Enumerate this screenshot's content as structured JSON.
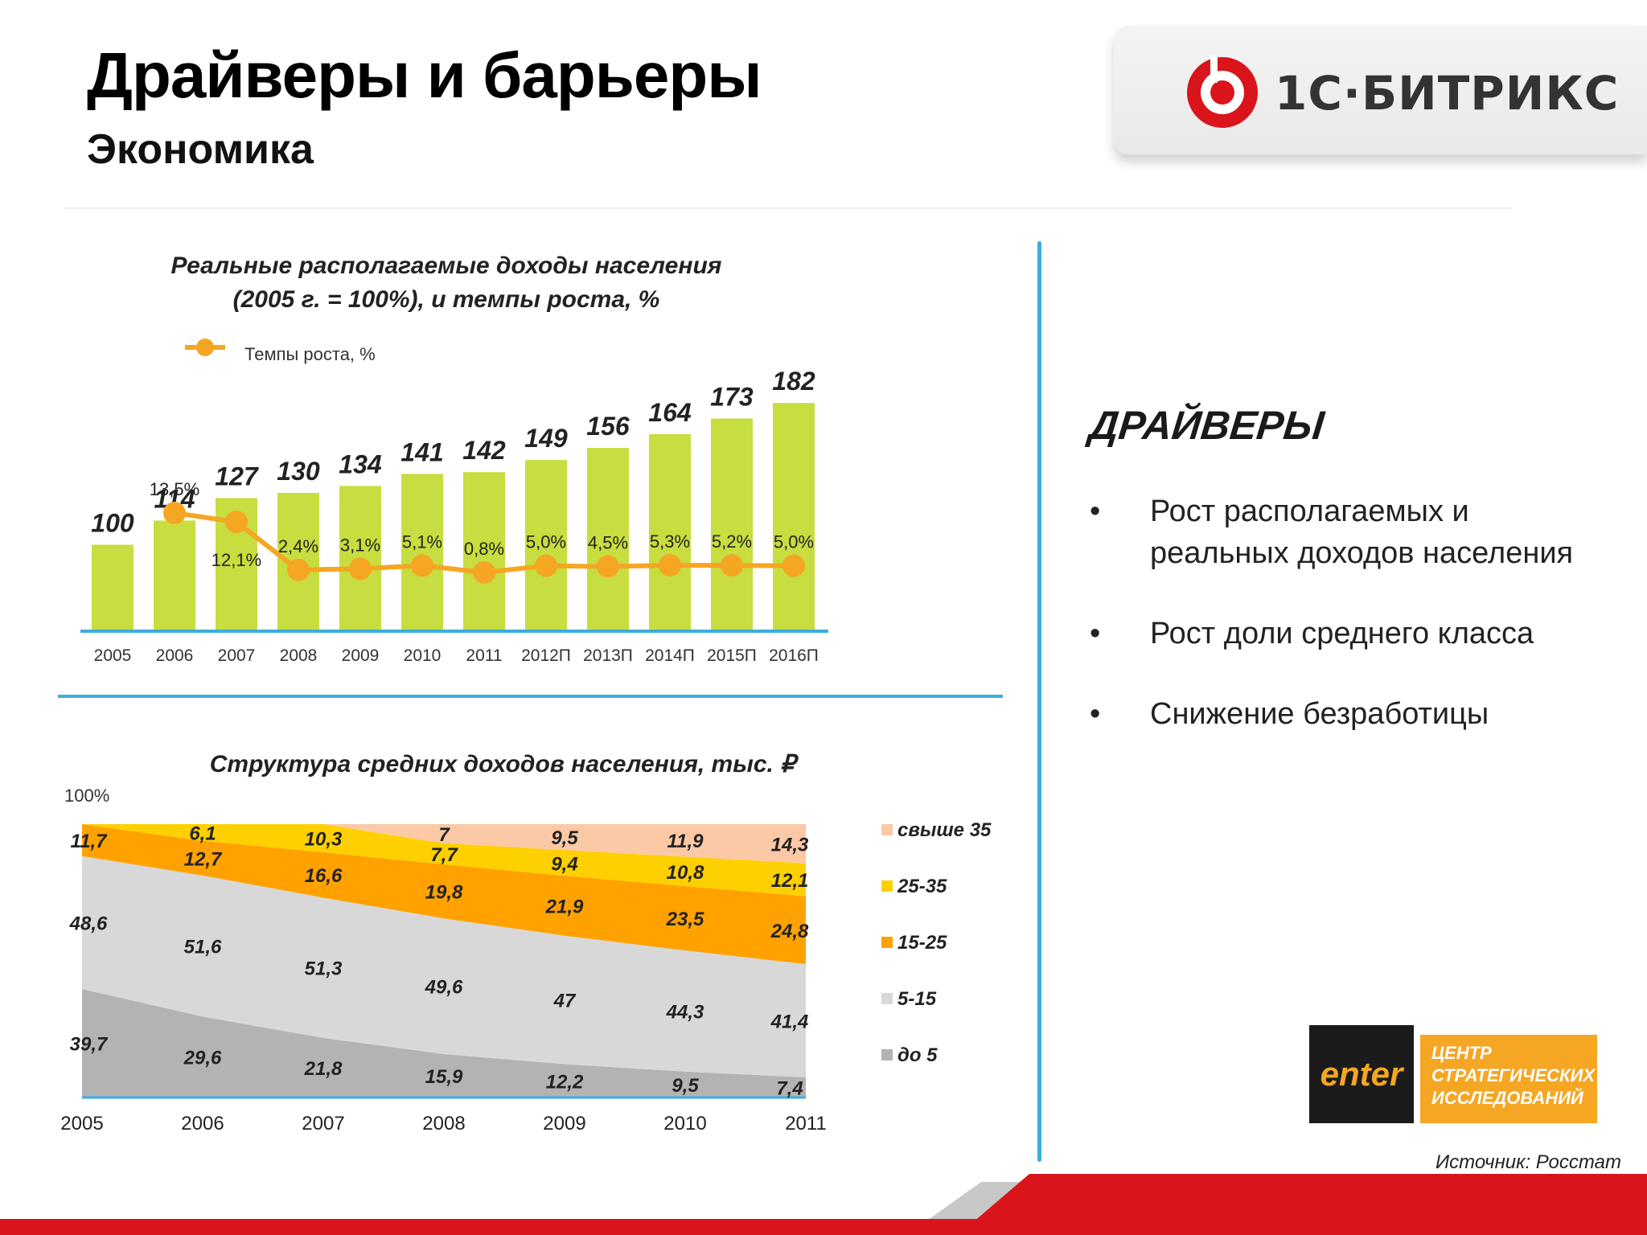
{
  "header": {
    "title": "Драйверы и барьеры",
    "subtitle": "Экономика"
  },
  "brand": {
    "logo_text": "1С·БИТРИКС",
    "accent": "#d9141b"
  },
  "drivers": {
    "heading": "ДРАЙВЕРЫ",
    "items": [
      "Рост располагаемых и реальных доходов населения",
      "Рост доли среднего класса",
      "Снижение безработицы"
    ]
  },
  "research_logo": {
    "left": "enter",
    "right": [
      "ЦЕНТР",
      "СТРАТЕГИЧЕСКИХ",
      "ИССЛЕДОВАНИЙ"
    ]
  },
  "source": "Источник: Росстат",
  "colors": {
    "bar": "#c8dd3f",
    "line": "#f5a623",
    "axis": "#3aaee0"
  },
  "chart_data": [
    {
      "type": "bar",
      "title": "Реальные располагаемые доходы населения (2005 г. = 100%), и темпы роста, %",
      "categories": [
        "2005",
        "2006",
        "2007",
        "2008",
        "2009",
        "2010",
        "2011",
        "2012П",
        "2013П",
        "2014П",
        "2015П",
        "2016П"
      ],
      "series": [
        {
          "values": [
            100,
            114,
            127,
            130,
            134,
            141,
            142,
            149,
            156,
            164,
            173,
            182
          ]
        },
        {
          "name": "Темпы роста, %",
          "type": "line",
          "values": [
            null,
            13.5,
            12.1,
            2.4,
            3.1,
            5.1,
            0.8,
            5.0,
            4.5,
            5.3,
            5.2,
            5.0
          ],
          "labels": [
            "",
            "13,5%",
            "12,1%",
            "2,4%",
            "3,1%",
            "5,1%",
            "0,8%",
            "5,0%",
            "4,5%",
            "5,3%",
            "5,2%",
            "5,0%"
          ]
        }
      ],
      "legend": "top-left"
    },
    {
      "type": "area",
      "title": "Структура средних доходов населения, тыс. ₽",
      "y_axis_label": "100%",
      "x": [
        "2005",
        "2006",
        "2007",
        "2008",
        "2009",
        "2010",
        "2011"
      ],
      "series": [
        {
          "name": "до 5",
          "color": "#b3b3b3",
          "values": [
            39.7,
            29.6,
            21.8,
            15.9,
            12.2,
            9.5,
            7.4
          ],
          "labels": [
            "39,7",
            "29,6",
            "21,8",
            "15,9",
            "12,2",
            "9,5",
            "7,4"
          ]
        },
        {
          "name": "5-15",
          "color": "#d8d8d8",
          "values": [
            48.6,
            51.6,
            51.3,
            49.6,
            47,
            44.3,
            41.4
          ],
          "labels": [
            "48,6",
            "51,6",
            "51,3",
            "49,6",
            "47",
            "44,3",
            "41,4"
          ]
        },
        {
          "name": "15-25",
          "color": "#ffa200",
          "values": [
            11.7,
            12.7,
            16.6,
            19.8,
            21.9,
            23.5,
            24.8
          ],
          "labels": [
            "11,7",
            "12,7",
            "16,6",
            "19,8",
            "21,9",
            "23,5",
            "24,8"
          ]
        },
        {
          "name": "25-35",
          "color": "#ffd000",
          "values": [
            0,
            6.1,
            10.3,
            7.7,
            9.4,
            10.8,
            12.1
          ],
          "labels": [
            "",
            "6,1",
            "10,3",
            "7,7",
            "9,4",
            "10,8",
            "12,1"
          ]
        },
        {
          "name": "свыше 35",
          "color": "#fbc9a6",
          "values": [
            0,
            0,
            0,
            7,
            9.5,
            11.9,
            14.3
          ],
          "labels": [
            "",
            "",
            "",
            "7",
            "9,5",
            "11,9",
            "14,3"
          ]
        }
      ],
      "legend": "right"
    }
  ]
}
